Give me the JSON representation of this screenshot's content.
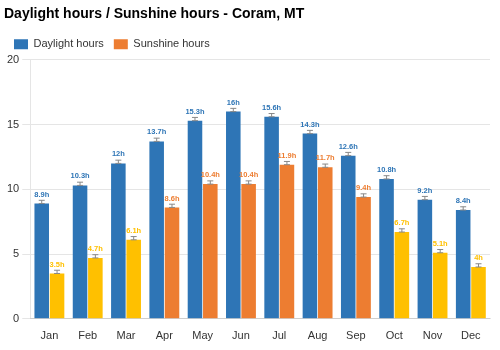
{
  "chart_data": {
    "type": "bar",
    "title": "Daylight hours / Sunshine hours - Coram, MT",
    "categories": [
      "Jan",
      "Feb",
      "Mar",
      "Apr",
      "May",
      "Jun",
      "Jul",
      "Aug",
      "Sep",
      "Oct",
      "Nov",
      "Dec"
    ],
    "series": [
      {
        "name": "Daylight hours",
        "color": "#2e75b6",
        "values": [
          8.9,
          10.3,
          12.0,
          13.7,
          15.3,
          16.0,
          15.6,
          14.3,
          12.6,
          10.8,
          9.2,
          8.4
        ],
        "value_labels": [
          "8.9h",
          "10.3h",
          "12h",
          "13.7h",
          "15.3h",
          "16h",
          "15.6h",
          "14.3h",
          "12.6h",
          "10.8h",
          "9.2h",
          "8.4h"
        ],
        "yerr_minus": [
          0,
          0,
          0,
          0,
          0,
          0,
          0,
          0,
          0,
          0,
          0,
          0
        ],
        "yerr_plus": [
          0.25,
          0.25,
          0.25,
          0.25,
          0.25,
          0.25,
          0.25,
          0.25,
          0.25,
          0.25,
          0.25,
          0.25
        ]
      },
      {
        "name": "Sunshine hours",
        "color": "#ed7d31",
        "colors": [
          "#ffc000",
          "#ffc000",
          "#ffc000",
          "#ed7d31",
          "#ed7d31",
          "#ed7d31",
          "#ed7d31",
          "#ed7d31",
          "#ed7d31",
          "#ffc000",
          "#ffc000",
          "#ffc000"
        ],
        "values": [
          3.5,
          4.7,
          6.1,
          8.6,
          10.4,
          10.4,
          11.9,
          11.7,
          9.4,
          6.7,
          5.1,
          4.0
        ],
        "value_labels": [
          "3.5h",
          "4.7h",
          "6.1h",
          "8.6h",
          "10.4h",
          "10.4h",
          "11.9h",
          "11.7h",
          "9.4h",
          "6.7h",
          "5.1h",
          "4h"
        ],
        "yerr_minus": [
          0,
          0,
          0,
          0,
          0,
          0,
          0,
          0,
          0,
          0,
          0,
          0
        ],
        "yerr_plus": [
          0.25,
          0.25,
          0.25,
          0.25,
          0.25,
          0.25,
          0.25,
          0.25,
          0.25,
          0.25,
          0.25,
          0.25
        ]
      }
    ],
    "ylim": [
      0,
      20
    ],
    "yticks": [
      0,
      5,
      10,
      15,
      20
    ],
    "grid": true,
    "legend": "upper left",
    "data_labels": true
  }
}
